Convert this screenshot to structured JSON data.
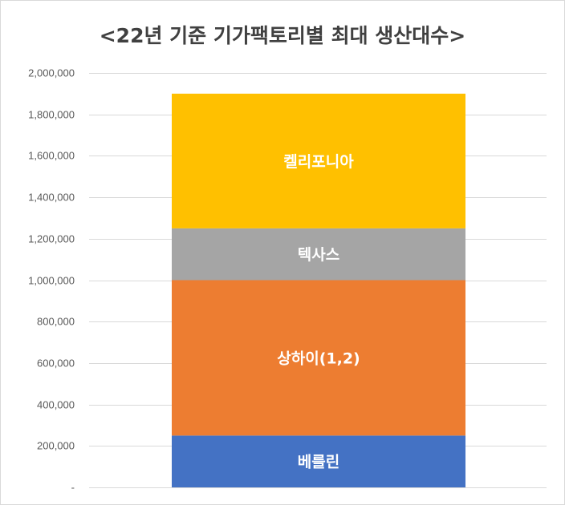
{
  "chart_data": {
    "type": "bar",
    "stacked": true,
    "title": "<22년 기준 기가팩토리별 최대 생산대수>",
    "xlabel": "",
    "ylabel": "",
    "ylim": [
      0,
      2000000
    ],
    "grid": true,
    "y_ticks": [
      {
        "value": 0,
        "label": "-"
      },
      {
        "value": 200000,
        "label": "200,000"
      },
      {
        "value": 400000,
        "label": "400,000"
      },
      {
        "value": 600000,
        "label": "600,000"
      },
      {
        "value": 800000,
        "label": "800,000"
      },
      {
        "value": 1000000,
        "label": "1,000,000"
      },
      {
        "value": 1200000,
        "label": "1,200,000"
      },
      {
        "value": 1400000,
        "label": "1,400,000"
      },
      {
        "value": 1600000,
        "label": "1,600,000"
      },
      {
        "value": 1800000,
        "label": "1,800,000"
      },
      {
        "value": 2000000,
        "label": "2,000,000"
      }
    ],
    "series": [
      {
        "name": "베를린",
        "values": [
          250000
        ],
        "color": "#4472c4"
      },
      {
        "name": "상하이(1,2)",
        "values": [
          750000
        ],
        "color": "#ed7d31"
      },
      {
        "name": "텍사스",
        "values": [
          250000
        ],
        "color": "#a5a5a5"
      },
      {
        "name": "켈리포니아",
        "values": [
          650000
        ],
        "color": "#ffc000"
      }
    ]
  }
}
